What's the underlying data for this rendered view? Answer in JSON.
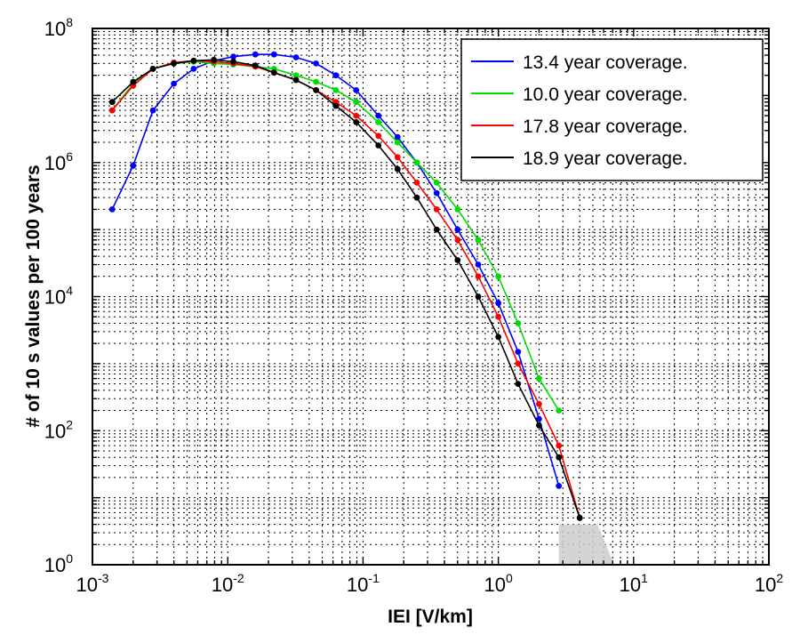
{
  "chart_data": {
    "type": "line",
    "xlabel": "IEI [V/km]",
    "ylabel": "# of 10 s values per 100 years",
    "xscale": "log",
    "yscale": "log",
    "xlim": [
      0.001,
      100
    ],
    "ylim": [
      1,
      100000000
    ],
    "grid": true,
    "legend_position": "top-right",
    "x_ticks": [
      {
        "base": "10",
        "exp": "-3"
      },
      {
        "base": "10",
        "exp": "-2"
      },
      {
        "base": "10",
        "exp": "-1"
      },
      {
        "base": "10",
        "exp": "0"
      },
      {
        "base": "10",
        "exp": "1"
      },
      {
        "base": "10",
        "exp": "2"
      }
    ],
    "y_ticks": [
      {
        "base": "10",
        "exp": "0"
      },
      {
        "base": "10",
        "exp": "2"
      },
      {
        "base": "10",
        "exp": "4"
      },
      {
        "base": "10",
        "exp": "6"
      },
      {
        "base": "10",
        "exp": "8"
      }
    ],
    "shaded_region": {
      "x": [
        2.8,
        7.2
      ],
      "y": [
        1,
        4
      ],
      "color": "#cccccc"
    },
    "series": [
      {
        "name": "13.4 year coverage.",
        "color": "#0000ff",
        "x": [
          0.0014,
          0.002,
          0.0028,
          0.004,
          0.0056,
          0.0079,
          0.011,
          0.016,
          0.022,
          0.032,
          0.045,
          0.063,
          0.089,
          0.13,
          0.18,
          0.25,
          0.35,
          0.5,
          0.71,
          1.0,
          1.4,
          2.0,
          2.8
        ],
        "y": [
          200000,
          900000,
          6000000,
          15000000,
          25000000,
          33000000,
          38000000,
          41000000,
          41000000,
          37000000,
          30000000,
          20000000,
          12000000,
          5000000,
          2400000,
          1000000,
          350000,
          100000,
          30000,
          8000,
          1500,
          150,
          15
        ]
      },
      {
        "name": "10.0 year coverage.",
        "color": "#00dd00",
        "x": [
          0.0014,
          0.002,
          0.0028,
          0.004,
          0.0056,
          0.0079,
          0.011,
          0.016,
          0.022,
          0.032,
          0.045,
          0.063,
          0.089,
          0.13,
          0.18,
          0.25,
          0.35,
          0.5,
          0.71,
          1.0,
          1.4,
          2.0,
          2.8
        ],
        "y": [
          6000000,
          15000000,
          25000000,
          30000000,
          32000000,
          30000000,
          29000000,
          27000000,
          25000000,
          20000000,
          16000000,
          12000000,
          8000000,
          4000000,
          2000000,
          1000000,
          500000,
          200000,
          70000,
          20000,
          4000,
          600,
          200
        ]
      },
      {
        "name": "17.8 year coverage.",
        "color": "#ff0000",
        "x": [
          0.0014,
          0.002,
          0.0028,
          0.004,
          0.0056,
          0.0079,
          0.011,
          0.016,
          0.022,
          0.032,
          0.045,
          0.063,
          0.089,
          0.13,
          0.18,
          0.25,
          0.35,
          0.5,
          0.71,
          1.0,
          1.4,
          2.0,
          2.8,
          4.0
        ],
        "y": [
          6000000,
          14000000,
          25000000,
          31000000,
          33000000,
          32000000,
          30000000,
          27000000,
          22000000,
          17000000,
          12000000,
          8000000,
          5000000,
          2500000,
          1200000,
          500000,
          200000,
          70000,
          20000,
          5000,
          1000,
          250,
          60,
          5
        ]
      },
      {
        "name": "18.9 year coverage.",
        "color": "#000000",
        "x": [
          0.0014,
          0.002,
          0.0028,
          0.004,
          0.0056,
          0.0079,
          0.011,
          0.016,
          0.022,
          0.032,
          0.045,
          0.063,
          0.089,
          0.13,
          0.18,
          0.25,
          0.35,
          0.5,
          0.71,
          1.0,
          1.4,
          2.0,
          2.8,
          4.0
        ],
        "y": [
          8000000,
          16000000,
          25000000,
          30000000,
          33000000,
          34000000,
          32000000,
          28000000,
          22000000,
          17000000,
          12000000,
          7000000,
          4000000,
          1800000,
          800000,
          300000,
          100000,
          35000,
          10000,
          2500,
          500,
          120,
          40,
          5
        ]
      }
    ]
  }
}
